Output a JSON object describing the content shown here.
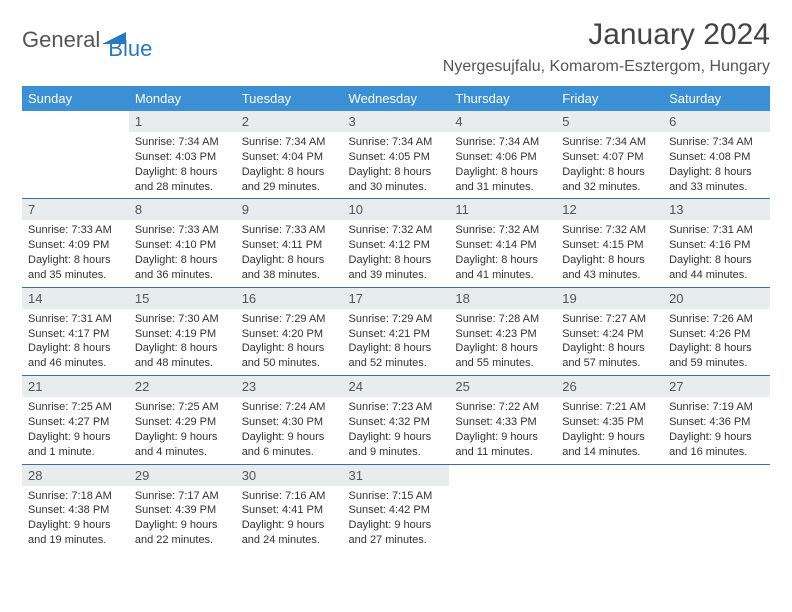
{
  "brand": {
    "name1": "General",
    "name2": "Blue"
  },
  "title": "January 2024",
  "location": "Nyergesujfalu, Komarom-Esztergom, Hungary",
  "colors": {
    "header_bg": "#3b8fd4",
    "header_text": "#ffffff",
    "daynum_bg": "#e9ecef",
    "row_border": "#3b6fa0",
    "brand_gray": "#555555",
    "brand_blue": "#2a78c0",
    "body_text": "#333333"
  },
  "day_headers": [
    "Sunday",
    "Monday",
    "Tuesday",
    "Wednesday",
    "Thursday",
    "Friday",
    "Saturday"
  ],
  "weeks": [
    [
      null,
      {
        "n": "1",
        "sr": "7:34 AM",
        "ss": "4:03 PM",
        "dl": "8 hours and 28 minutes."
      },
      {
        "n": "2",
        "sr": "7:34 AM",
        "ss": "4:04 PM",
        "dl": "8 hours and 29 minutes."
      },
      {
        "n": "3",
        "sr": "7:34 AM",
        "ss": "4:05 PM",
        "dl": "8 hours and 30 minutes."
      },
      {
        "n": "4",
        "sr": "7:34 AM",
        "ss": "4:06 PM",
        "dl": "8 hours and 31 minutes."
      },
      {
        "n": "5",
        "sr": "7:34 AM",
        "ss": "4:07 PM",
        "dl": "8 hours and 32 minutes."
      },
      {
        "n": "6",
        "sr": "7:34 AM",
        "ss": "4:08 PM",
        "dl": "8 hours and 33 minutes."
      }
    ],
    [
      {
        "n": "7",
        "sr": "7:33 AM",
        "ss": "4:09 PM",
        "dl": "8 hours and 35 minutes."
      },
      {
        "n": "8",
        "sr": "7:33 AM",
        "ss": "4:10 PM",
        "dl": "8 hours and 36 minutes."
      },
      {
        "n": "9",
        "sr": "7:33 AM",
        "ss": "4:11 PM",
        "dl": "8 hours and 38 minutes."
      },
      {
        "n": "10",
        "sr": "7:32 AM",
        "ss": "4:12 PM",
        "dl": "8 hours and 39 minutes."
      },
      {
        "n": "11",
        "sr": "7:32 AM",
        "ss": "4:14 PM",
        "dl": "8 hours and 41 minutes."
      },
      {
        "n": "12",
        "sr": "7:32 AM",
        "ss": "4:15 PM",
        "dl": "8 hours and 43 minutes."
      },
      {
        "n": "13",
        "sr": "7:31 AM",
        "ss": "4:16 PM",
        "dl": "8 hours and 44 minutes."
      }
    ],
    [
      {
        "n": "14",
        "sr": "7:31 AM",
        "ss": "4:17 PM",
        "dl": "8 hours and 46 minutes."
      },
      {
        "n": "15",
        "sr": "7:30 AM",
        "ss": "4:19 PM",
        "dl": "8 hours and 48 minutes."
      },
      {
        "n": "16",
        "sr": "7:29 AM",
        "ss": "4:20 PM",
        "dl": "8 hours and 50 minutes."
      },
      {
        "n": "17",
        "sr": "7:29 AM",
        "ss": "4:21 PM",
        "dl": "8 hours and 52 minutes."
      },
      {
        "n": "18",
        "sr": "7:28 AM",
        "ss": "4:23 PM",
        "dl": "8 hours and 55 minutes."
      },
      {
        "n": "19",
        "sr": "7:27 AM",
        "ss": "4:24 PM",
        "dl": "8 hours and 57 minutes."
      },
      {
        "n": "20",
        "sr": "7:26 AM",
        "ss": "4:26 PM",
        "dl": "8 hours and 59 minutes."
      }
    ],
    [
      {
        "n": "21",
        "sr": "7:25 AM",
        "ss": "4:27 PM",
        "dl": "9 hours and 1 minute."
      },
      {
        "n": "22",
        "sr": "7:25 AM",
        "ss": "4:29 PM",
        "dl": "9 hours and 4 minutes."
      },
      {
        "n": "23",
        "sr": "7:24 AM",
        "ss": "4:30 PM",
        "dl": "9 hours and 6 minutes."
      },
      {
        "n": "24",
        "sr": "7:23 AM",
        "ss": "4:32 PM",
        "dl": "9 hours and 9 minutes."
      },
      {
        "n": "25",
        "sr": "7:22 AM",
        "ss": "4:33 PM",
        "dl": "9 hours and 11 minutes."
      },
      {
        "n": "26",
        "sr": "7:21 AM",
        "ss": "4:35 PM",
        "dl": "9 hours and 14 minutes."
      },
      {
        "n": "27",
        "sr": "7:19 AM",
        "ss": "4:36 PM",
        "dl": "9 hours and 16 minutes."
      }
    ],
    [
      {
        "n": "28",
        "sr": "7:18 AM",
        "ss": "4:38 PM",
        "dl": "9 hours and 19 minutes."
      },
      {
        "n": "29",
        "sr": "7:17 AM",
        "ss": "4:39 PM",
        "dl": "9 hours and 22 minutes."
      },
      {
        "n": "30",
        "sr": "7:16 AM",
        "ss": "4:41 PM",
        "dl": "9 hours and 24 minutes."
      },
      {
        "n": "31",
        "sr": "7:15 AM",
        "ss": "4:42 PM",
        "dl": "9 hours and 27 minutes."
      },
      null,
      null,
      null
    ]
  ],
  "labels": {
    "sunrise": "Sunrise:",
    "sunset": "Sunset:",
    "daylight": "Daylight:"
  }
}
